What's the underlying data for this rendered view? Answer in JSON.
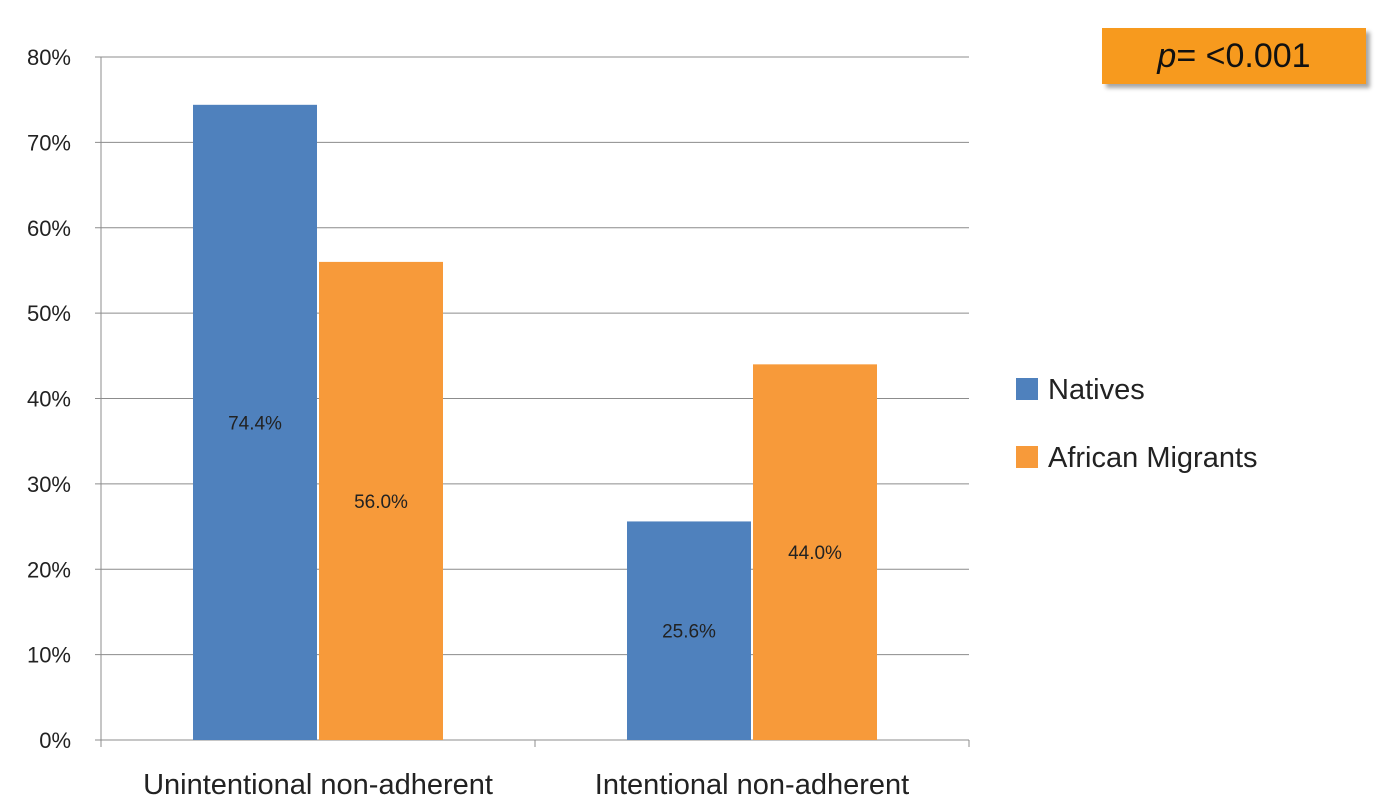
{
  "chart_data": {
    "type": "bar",
    "categories": [
      "Unintentional non-adherent",
      "Intentional non-adherent"
    ],
    "series": [
      {
        "name": "Natives",
        "values": [
          74.4,
          25.6
        ],
        "labels": [
          "74.4%",
          "25.6%"
        ],
        "color": "#4F81BD"
      },
      {
        "name": "African Migrants",
        "values": [
          56.0,
          44.0
        ],
        "labels": [
          "56.0%",
          "44.0%"
        ],
        "color": "#F79A3A"
      }
    ],
    "yticks": [
      0,
      10,
      20,
      30,
      40,
      50,
      60,
      70,
      80
    ],
    "ytick_labels": [
      "0%",
      "10%",
      "20%",
      "30%",
      "40%",
      "50%",
      "60%",
      "70%",
      "80%"
    ],
    "ylim": [
      0,
      80
    ],
    "grid": true,
    "legend": "right",
    "title": "",
    "xlabel": "",
    "ylabel": ""
  },
  "annotation": {
    "p_symbol": "p",
    "p_text": "= <0.001",
    "background": "#F79A1E"
  }
}
